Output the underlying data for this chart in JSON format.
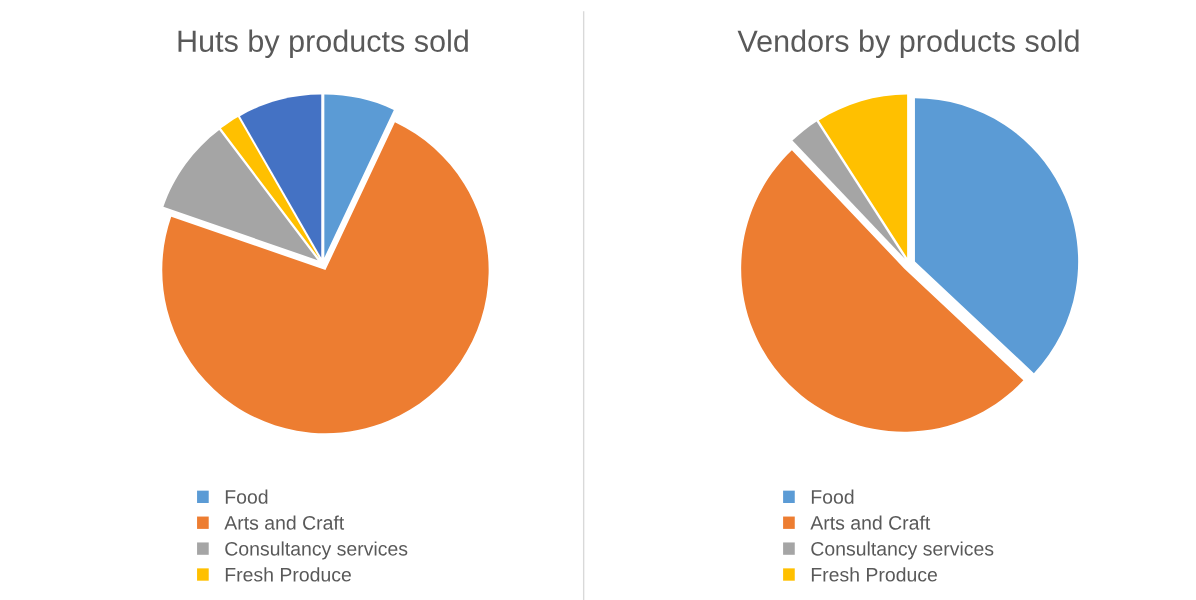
{
  "chart_data": [
    {
      "type": "pie",
      "title": "Huts by products sold",
      "categories": [
        "Food",
        "Arts and Craft",
        "Consultancy services",
        "Fresh Produce",
        null
      ],
      "values": [
        7,
        73.3,
        9.4,
        2,
        8.3
      ],
      "colors": [
        "#5b9bd5",
        "#ed7d31",
        "#a5a5a5",
        "#ffc000",
        "#4472c4"
      ],
      "legend": "bottom"
    },
    {
      "type": "pie",
      "title": "Vendors by products sold",
      "categories": [
        "Food",
        "Arts and Craft",
        "Consultancy services",
        "Fresh Produce"
      ],
      "values": [
        37,
        50.9,
        3,
        9.1
      ],
      "colors": [
        "#5b9bd5",
        "#ed7d31",
        "#a5a5a5",
        "#ffc000"
      ],
      "legend": "bottom"
    }
  ]
}
